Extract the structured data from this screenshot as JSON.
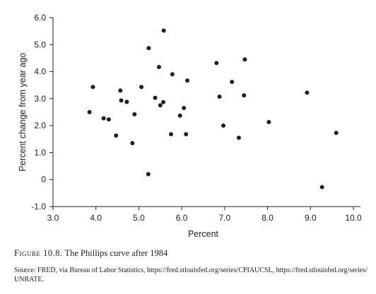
{
  "caption": {
    "figure_label": "Figure 10.8.",
    "title": "The Phillips curve after 1984"
  },
  "source": "Source: FRED, via Bureau of Labor Statistics, https://fred.stlouisfed.org/series/CPIAUCSL, https://fred.stlouisfed.org/series/UNRATE.",
  "chart_data": {
    "type": "scatter",
    "title": "",
    "xlabel": "Percent",
    "ylabel": "Percent change from year ago",
    "xlim": [
      3.0,
      10.0
    ],
    "ylim": [
      -1.0,
      6.0
    ],
    "x_ticks": [
      "3.0",
      "4.0",
      "5.0",
      "6.0",
      "7.0",
      "8.0",
      "9.0",
      "10.0"
    ],
    "y_ticks": [
      "-1.0",
      "0",
      "1.0",
      "2.0",
      "3.0",
      "4.0",
      "5.0",
      "6.0"
    ],
    "grid": false,
    "legend": "none",
    "points": [
      {
        "x": 3.85,
        "y": 2.5
      },
      {
        "x": 3.93,
        "y": 3.43
      },
      {
        "x": 4.18,
        "y": 2.27
      },
      {
        "x": 4.3,
        "y": 2.23
      },
      {
        "x": 4.47,
        "y": 1.63
      },
      {
        "x": 4.57,
        "y": 3.3
      },
      {
        "x": 4.59,
        "y": 2.93
      },
      {
        "x": 4.72,
        "y": 2.88
      },
      {
        "x": 4.85,
        "y": 1.35
      },
      {
        "x": 4.9,
        "y": 2.42
      },
      {
        "x": 5.06,
        "y": 3.43
      },
      {
        "x": 5.22,
        "y": 0.2
      },
      {
        "x": 5.23,
        "y": 4.87
      },
      {
        "x": 5.38,
        "y": 3.03
      },
      {
        "x": 5.47,
        "y": 4.17
      },
      {
        "x": 5.5,
        "y": 2.75
      },
      {
        "x": 5.57,
        "y": 2.87
      },
      {
        "x": 5.58,
        "y": 5.52
      },
      {
        "x": 5.75,
        "y": 1.68
      },
      {
        "x": 5.78,
        "y": 3.9
      },
      {
        "x": 5.96,
        "y": 2.37
      },
      {
        "x": 6.05,
        "y": 2.65
      },
      {
        "x": 6.1,
        "y": 1.68
      },
      {
        "x": 6.13,
        "y": 3.67
      },
      {
        "x": 6.81,
        "y": 4.32
      },
      {
        "x": 6.88,
        "y": 3.07
      },
      {
        "x": 6.97,
        "y": 2.0
      },
      {
        "x": 7.17,
        "y": 3.62
      },
      {
        "x": 7.33,
        "y": 1.55
      },
      {
        "x": 7.45,
        "y": 3.12
      },
      {
        "x": 7.47,
        "y": 4.45
      },
      {
        "x": 8.03,
        "y": 2.13
      },
      {
        "x": 8.92,
        "y": 3.22
      },
      {
        "x": 9.27,
        "y": -0.28
      },
      {
        "x": 9.6,
        "y": 1.73
      }
    ]
  }
}
